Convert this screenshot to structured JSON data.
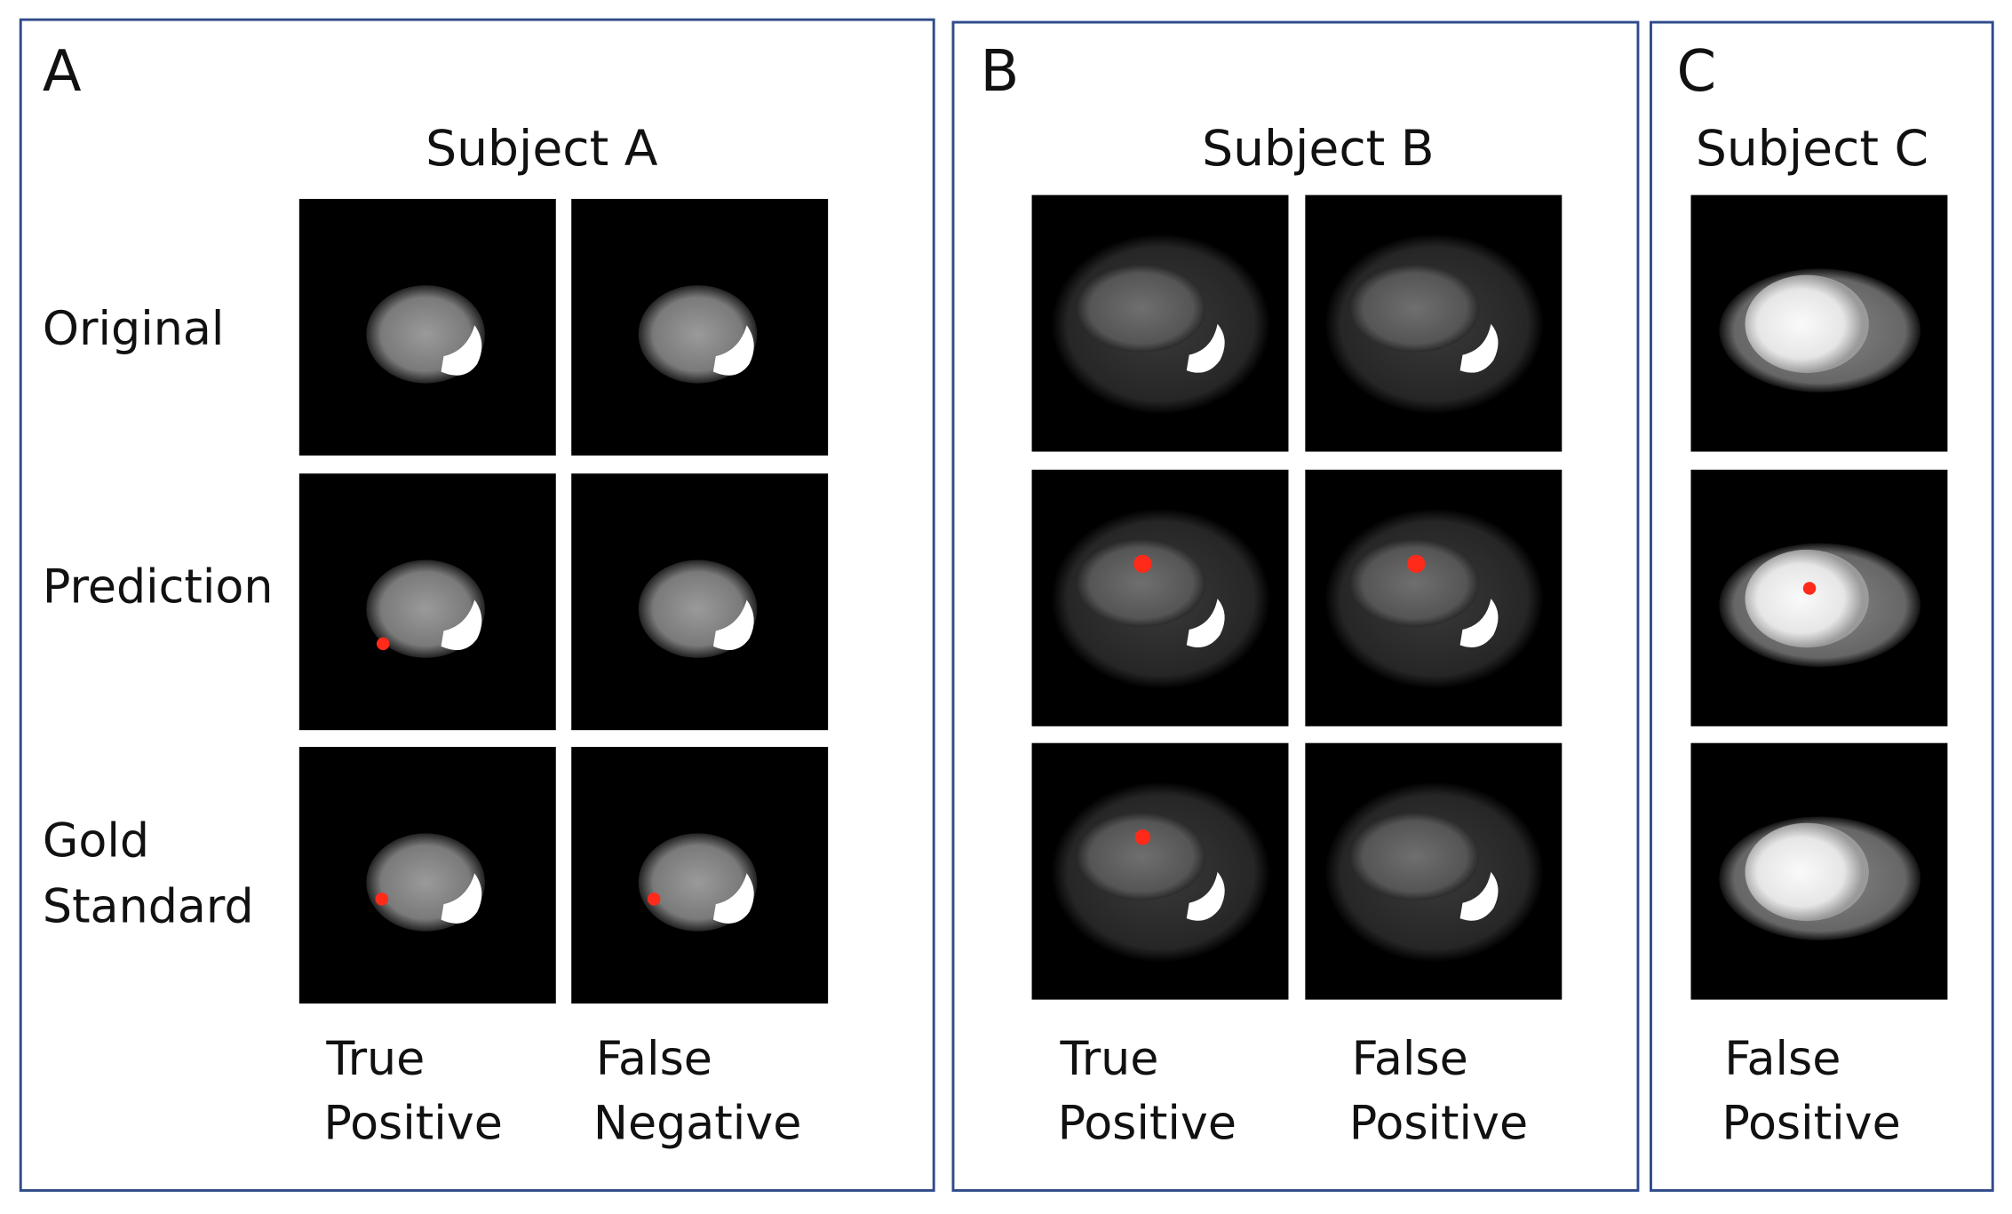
{
  "panels": [
    {
      "letter": "A",
      "title": "Subject A",
      "row_labels": [
        [
          "Original"
        ],
        [
          "Prediction"
        ],
        [
          "Gold",
          "Standard"
        ]
      ],
      "columns": [
        [
          "True",
          "Positive"
        ],
        [
          "False",
          "Negative"
        ]
      ]
    },
    {
      "letter": "B",
      "title": "Subject B",
      "columns": [
        [
          "True",
          "Positive"
        ],
        [
          "False",
          "Positive"
        ]
      ]
    },
    {
      "letter": "C",
      "title": "Subject C",
      "columns": [
        [
          "False",
          "Positive"
        ]
      ]
    }
  ]
}
